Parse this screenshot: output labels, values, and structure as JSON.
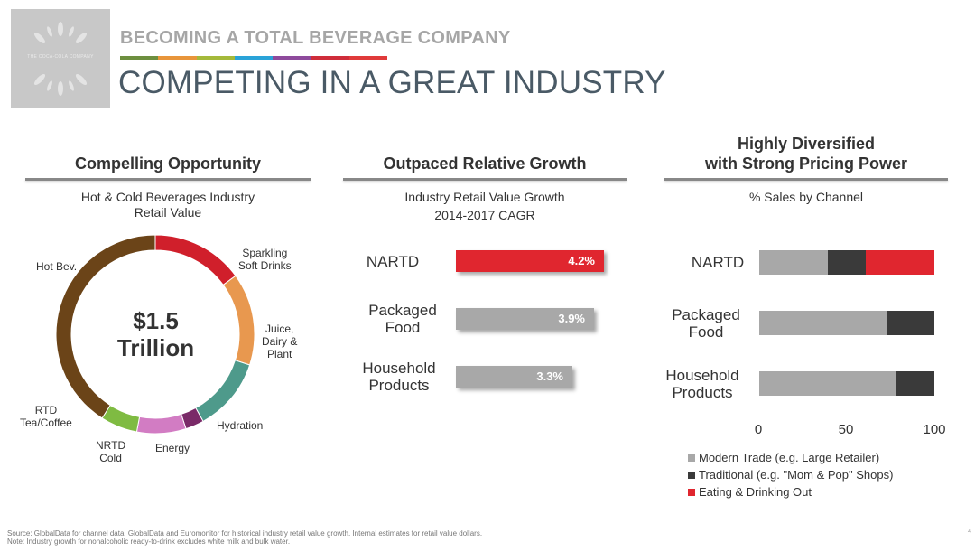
{
  "header": {
    "logo_text": "THE COCA-COLA COMPANY",
    "kicker": "BECOMING A TOTAL BEVERAGE COMPANY",
    "title": "COMPETING IN A GREAT INDUSTRY",
    "color_bar": [
      "#6d8f3f",
      "#e8953a",
      "#a4b93a",
      "#2aa3d8",
      "#8e4a9c",
      "#cf2d3a",
      "#e03a3a"
    ]
  },
  "panels": {
    "left": {
      "title": "Compelling Opportunity",
      "subtitle_line1": "Hot & Cold Beverages Industry",
      "subtitle_line2": "Retail Value"
    },
    "middle": {
      "title": "Outpaced Relative Growth",
      "subtitle_line1": "Industry Retail Value Growth",
      "subtitle_line2": "2014-2017 CAGR"
    },
    "right": {
      "title_line1": "Highly Diversified",
      "title_line2": "with Strong Pricing Power",
      "subtitle": "% Sales by Channel"
    }
  },
  "chart_data": [
    {
      "type": "pie",
      "title": "Hot & Cold Beverages Industry Retail Value",
      "center_line1": "$1.5",
      "center_line2": "Trillion",
      "slices": [
        {
          "label": "Sparkling Soft Drinks",
          "label_line1": "Sparkling",
          "label_line2": "Soft Drinks",
          "label_line3": "",
          "value": 15,
          "color": "#d01f2b"
        },
        {
          "label": "Juice, Dairy & Plant",
          "label_line1": "Juice,",
          "label_line2": "Dairy &",
          "label_line3": "Plant",
          "value": 15,
          "color": "#e8984f"
        },
        {
          "label": "Hydration",
          "label_line1": "Hydration",
          "label_line2": "",
          "label_line3": "",
          "value": 12,
          "color": "#4e9a8b"
        },
        {
          "label": "Energy",
          "label_line1": "Energy",
          "label_line2": "",
          "label_line3": "",
          "value": 3,
          "color": "#7a2a68"
        },
        {
          "label": "NRTD Cold",
          "label_line1": "NRTD",
          "label_line2": "Cold",
          "label_line3": "",
          "value": 8,
          "color": "#d27cc3"
        },
        {
          "label": "RTD Tea/Coffee",
          "label_line1": "RTD",
          "label_line2": "Tea/Coffee",
          "label_line3": "",
          "value": 6,
          "color": "#7fbb42"
        },
        {
          "label": "Hot Bev.",
          "label_line1": "Hot Bev.",
          "label_line2": "",
          "label_line3": "",
          "value": 41,
          "color": "#6b4418"
        }
      ]
    },
    {
      "type": "bar",
      "title": "Industry Retail Value Growth 2014-2017 CAGR",
      "categories": [
        "NARTD",
        "Packaged Food",
        "Household Products"
      ],
      "category_lines": [
        [
          "NARTD"
        ],
        [
          "Packaged",
          "Food"
        ],
        [
          "Household",
          "Products"
        ]
      ],
      "values": [
        4.2,
        3.9,
        3.3
      ],
      "value_labels": [
        "4.2%",
        "3.9%",
        "3.3%"
      ],
      "colors": [
        "#e0262f",
        "#a8a8a8",
        "#a8a8a8"
      ],
      "xlim": [
        0,
        4.5
      ]
    },
    {
      "type": "bar",
      "stacked": true,
      "title": "% Sales by Channel",
      "categories": [
        "NARTD",
        "Packaged Food",
        "Household Products"
      ],
      "category_lines": [
        [
          "NARTD"
        ],
        [
          "Packaged",
          "Food"
        ],
        [
          "Household",
          "Products"
        ]
      ],
      "series": [
        {
          "name": "Modern Trade (e.g. Large Retailer)",
          "color": "#a8a8a8",
          "values": [
            39,
            73,
            78
          ]
        },
        {
          "name": "Traditional (e.g. \"Mom & Pop\" Shops)",
          "color": "#3a3a3a",
          "values": [
            22,
            27,
            22
          ]
        },
        {
          "name": "Eating & Drinking Out",
          "color": "#e0262f",
          "values": [
            39,
            0,
            0
          ]
        }
      ],
      "xlim": [
        0,
        100
      ],
      "xticks": [
        "0",
        "50",
        "100"
      ]
    }
  ],
  "footnotes": {
    "source": "Source: GlobalData for channel data.  GlobalData and Euromonitor for historical industry retail value growth. Internal estimates for retail value dollars.",
    "note": "Note: Industry growth for nonalcoholic ready-to-drink excludes white milk and bulk water."
  },
  "page_number": "4"
}
